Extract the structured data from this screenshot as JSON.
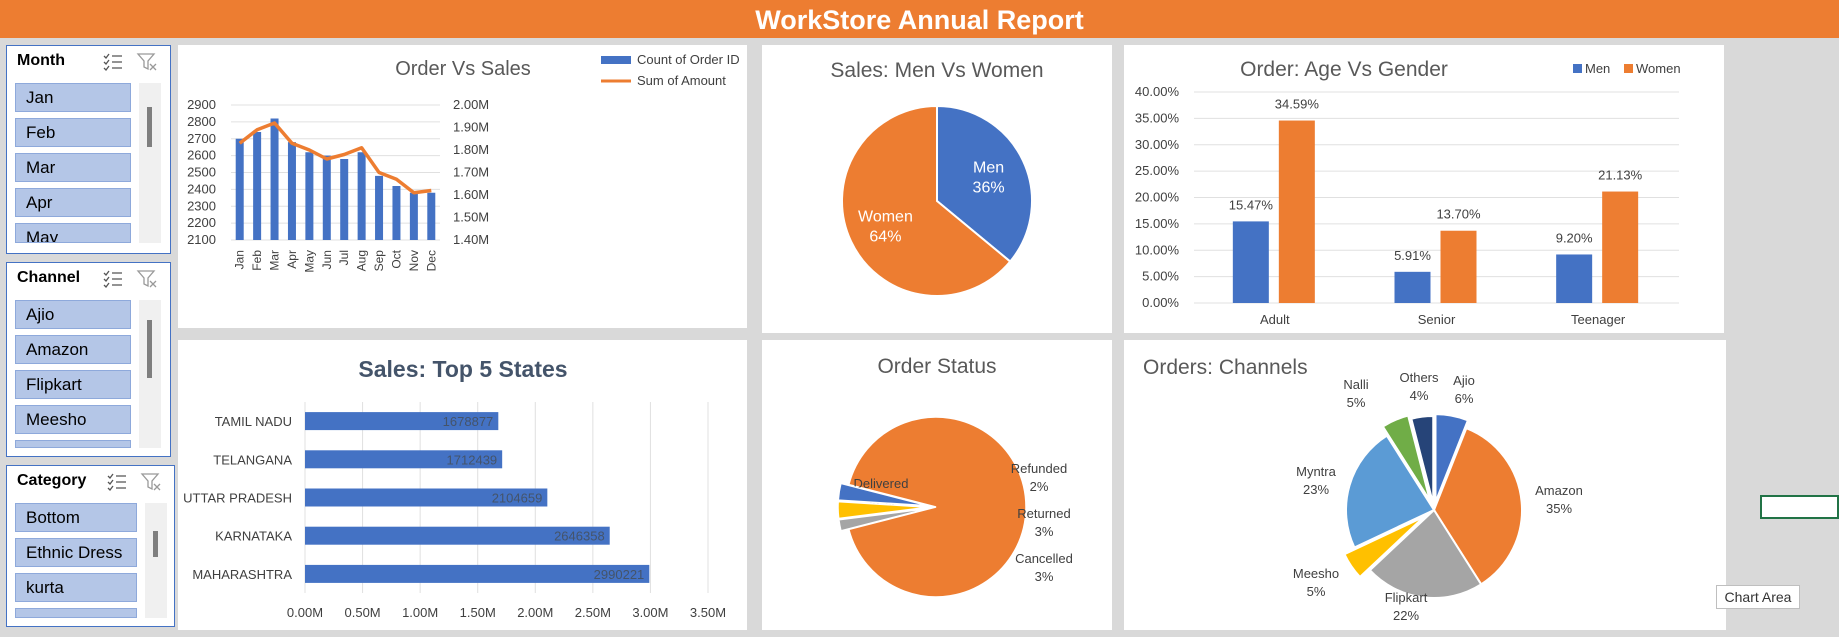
{
  "banner": {
    "title": "WorkStore Annual Report"
  },
  "colors": {
    "blue": "#4472c4",
    "orange": "#ed7d31",
    "gray": "#a5a5a5",
    "yellow": "#ffc000",
    "lightblue": "#5b9bd5",
    "green": "#70ad47",
    "navy": "#264478"
  },
  "slicers": [
    {
      "title": "Month",
      "items": [
        "Jan",
        "Feb",
        "Mar",
        "Apr",
        "May"
      ]
    },
    {
      "title": "Channel",
      "items": [
        "Ajio",
        "Amazon",
        "Flipkart",
        "Meesho",
        ""
      ]
    },
    {
      "title": "Category",
      "items": [
        "Bottom",
        "Ethnic Dress",
        "kurta",
        ""
      ]
    }
  ],
  "tooltip": {
    "text": "Chart Area"
  },
  "chart_data": [
    {
      "id": "order_vs_sales",
      "type": "bar+line",
      "title": "Order Vs Sales",
      "categories": [
        "Jan",
        "Feb",
        "Mar",
        "Apr",
        "May",
        "Jun",
        "Jul",
        "Aug",
        "Sep",
        "Oct",
        "Nov",
        "Dec"
      ],
      "series": [
        {
          "name": "Count of Order ID",
          "type": "bar",
          "axis": "left",
          "values": [
            2700,
            2740,
            2820,
            2680,
            2620,
            2600,
            2580,
            2620,
            2480,
            2420,
            2380,
            2380
          ]
        },
        {
          "name": "Sum of Amount",
          "type": "line",
          "axis": "right",
          "values": [
            1.83,
            1.89,
            1.92,
            1.83,
            1.8,
            1.76,
            1.78,
            1.81,
            1.7,
            1.67,
            1.61,
            1.62
          ]
        }
      ],
      "ylim": [
        2100,
        2900
      ],
      "y_ticks": [
        "2900",
        "2800",
        "2700",
        "2600",
        "2500",
        "2400",
        "2300",
        "2200",
        "2100"
      ],
      "y2lim": [
        1.4,
        2.0
      ],
      "y2_ticks": [
        "2.00M",
        "1.90M",
        "1.80M",
        "1.70M",
        "1.60M",
        "1.50M",
        "1.40M"
      ],
      "legend": "top-right"
    },
    {
      "id": "men_vs_women",
      "type": "pie",
      "title": "Sales: Men Vs Women",
      "slices": [
        {
          "label": "Men",
          "value": 36,
          "pct": "36%"
        },
        {
          "label": "Women",
          "value": 64,
          "pct": "64%"
        }
      ]
    },
    {
      "id": "age_vs_gender",
      "type": "bar",
      "title": "Order:  Age Vs Gender",
      "categories": [
        "Adult",
        "Senior",
        "Teenager"
      ],
      "series": [
        {
          "name": "Men",
          "values": [
            15.47,
            5.91,
            9.2
          ],
          "labels": [
            "15.47%",
            "5.91%",
            "9.20%"
          ]
        },
        {
          "name": "Women",
          "values": [
            34.59,
            13.7,
            21.13
          ],
          "labels": [
            "34.59%",
            "13.70%",
            "21.13%"
          ]
        }
      ],
      "ylim": [
        0,
        40
      ],
      "y_ticks": [
        "40.00%",
        "35.00%",
        "30.00%",
        "25.00%",
        "20.00%",
        "15.00%",
        "10.00%",
        "5.00%",
        "0.00%"
      ],
      "legend": "top-right"
    },
    {
      "id": "top5_states",
      "type": "bar",
      "orientation": "horizontal",
      "title": "Sales: Top 5 States",
      "categories": [
        "TAMIL NADU",
        "TELANGANA",
        "UTTAR PRADESH",
        "KARNATAKA",
        "MAHARASHTRA"
      ],
      "values": [
        1678877,
        1712439,
        2104659,
        2646358,
        2990221
      ],
      "labels": [
        "1678877",
        "1712439",
        "2104659",
        "2646358",
        "2990221"
      ],
      "xlim": [
        0,
        3500000
      ],
      "x_ticks": [
        "0.00M",
        "0.50M",
        "1.00M",
        "1.50M",
        "2.00M",
        "2.50M",
        "3.00M",
        "3.50M"
      ]
    },
    {
      "id": "order_status",
      "type": "pie",
      "title": "Order Status",
      "slices": [
        {
          "label": "Delivered",
          "value": 92,
          "pct": "92%"
        },
        {
          "label": "Refunded",
          "value": 2,
          "pct": "2%"
        },
        {
          "label": "Returned",
          "value": 3,
          "pct": "3%"
        },
        {
          "label": "Cancelled",
          "value": 3,
          "pct": "3%"
        }
      ]
    },
    {
      "id": "orders_channels",
      "type": "pie",
      "title": "Orders: Channels",
      "slices": [
        {
          "label": "Ajio",
          "value": 6,
          "pct": "6%"
        },
        {
          "label": "Amazon",
          "value": 35,
          "pct": "35%"
        },
        {
          "label": "Flipkart",
          "value": 22,
          "pct": "22%"
        },
        {
          "label": "Meesho",
          "value": 5,
          "pct": "5%"
        },
        {
          "label": "Myntra",
          "value": 23,
          "pct": "23%"
        },
        {
          "label": "Nalli",
          "value": 5,
          "pct": "5%"
        },
        {
          "label": "Others",
          "value": 4,
          "pct": "4%"
        }
      ]
    }
  ]
}
